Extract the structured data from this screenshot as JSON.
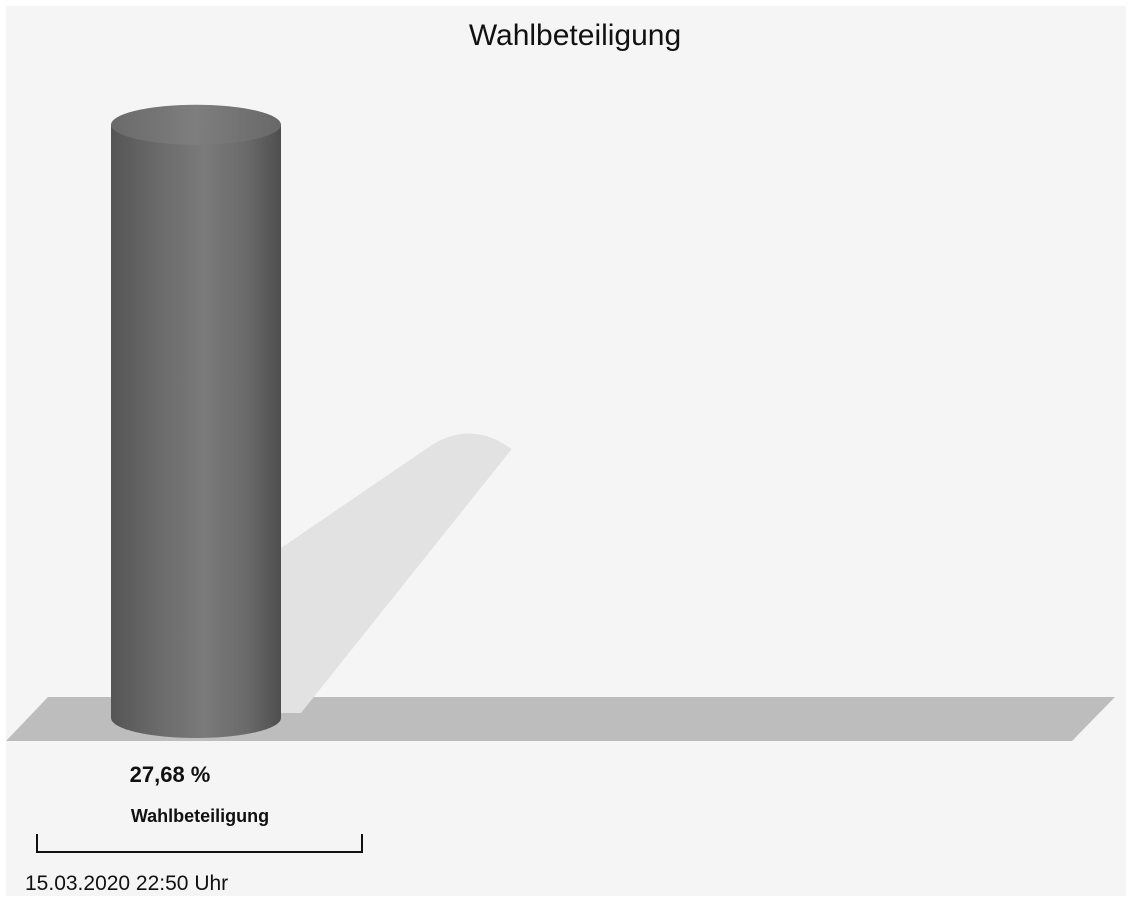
{
  "chart_data": {
    "type": "bar",
    "title": "Wahlbeteiligung",
    "categories": [
      "Wahlbeteiligung"
    ],
    "values": [
      27.68
    ],
    "value_labels": [
      "27,68 %"
    ],
    "unit": "%",
    "ylim": [
      0,
      30
    ],
    "grid": false,
    "legend": "none",
    "colors": {
      "bar": "#6f6f6f",
      "background": "#f5f5f5",
      "floor": "#bdbdbd",
      "shadow": "#e2e2e2"
    }
  },
  "footer": {
    "timestamp": "15.03.2020 22:50 Uhr"
  }
}
